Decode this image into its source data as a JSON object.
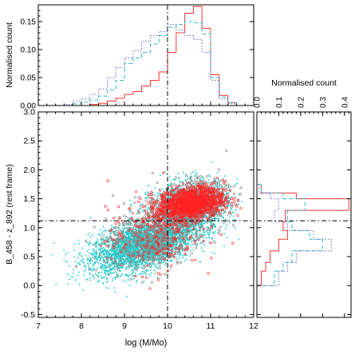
{
  "chart_data": [
    {
      "id": "top-histogram",
      "type": "histogram",
      "ylabel": "Normalised count",
      "xlim": [
        7,
        12
      ],
      "ylim": [
        0,
        0.18
      ],
      "yticks": [
        "0.00",
        "0.05",
        "0.10",
        "0.15"
      ],
      "bin_edges": [
        7.4,
        7.6,
        7.8,
        8.0,
        8.2,
        8.4,
        8.6,
        8.8,
        9.0,
        9.2,
        9.4,
        9.6,
        9.8,
        10.0,
        10.2,
        10.4,
        10.6,
        10.8,
        11.0,
        11.2,
        11.4,
        11.6,
        11.8
      ],
      "vline_x": 10,
      "series": [
        {
          "color": "#ff3333",
          "dash": "solid",
          "values": [
            0,
            0,
            0,
            0,
            0.002,
            0.004,
            0.008,
            0.013,
            0.02,
            0.025,
            0.035,
            0.045,
            0.06,
            0.095,
            0.13,
            0.165,
            0.177,
            0.138,
            0.055,
            0.018,
            0.005,
            0
          ]
        },
        {
          "color": "#33bbbb",
          "dash": "5,3",
          "values": [
            0,
            0,
            0.003,
            0.006,
            0.01,
            0.017,
            0.028,
            0.045,
            0.075,
            0.085,
            0.095,
            0.11,
            0.125,
            0.14,
            0.145,
            0.15,
            0.148,
            0.128,
            0.05,
            0.015,
            0.005,
            0
          ]
        },
        {
          "color": "#6666cc",
          "dash": "1.5,2",
          "values": [
            0,
            0.002,
            0.008,
            0.012,
            0.02,
            0.03,
            0.05,
            0.068,
            0.085,
            0.098,
            0.115,
            0.125,
            0.132,
            0.145,
            0.135,
            0.125,
            0.118,
            0.095,
            0.045,
            0.012,
            0.004,
            0
          ]
        }
      ]
    },
    {
      "id": "scatter",
      "type": "scatter",
      "xlabel": "log (M/Mo)",
      "ylabel": "B_458 - z_892 (rest frame)",
      "xlim": [
        7,
        12
      ],
      "ylim": [
        -0.55,
        3.0
      ],
      "xticks": [
        "7",
        "8",
        "9",
        "10",
        "11",
        "12"
      ],
      "yticks": [
        "-0.5",
        "0.0",
        "0.5",
        "1.0",
        "1.5",
        "2.0",
        "2.5",
        "3.0"
      ],
      "vline_x": 10,
      "hline_y": 1.12,
      "populations": [
        {
          "marker": "triangle",
          "color": "#22cccc",
          "n": 5200,
          "clusters": [
            {
              "weight": 0.62,
              "mx": 9.4,
              "sx": 0.6,
              "my": 0.68,
              "sy": 0.2,
              "slope": 0.18
            },
            {
              "weight": 0.38,
              "mx": 10.5,
              "sx": 0.45,
              "my": 1.35,
              "sy": 0.22,
              "slope": 0.1
            }
          ]
        },
        {
          "marker": "open-circle",
          "color": "#888888",
          "n": 900,
          "clusters": [
            {
              "weight": 0.5,
              "mx": 9.6,
              "sx": 0.55,
              "my": 0.85,
              "sy": 0.28,
              "slope": 0.15
            },
            {
              "weight": 0.5,
              "mx": 10.6,
              "sx": 0.4,
              "my": 1.4,
              "sy": 0.2,
              "slope": 0.1
            }
          ]
        },
        {
          "marker": "open-circle",
          "color": "#ff2222",
          "n": 1500,
          "clusters": [
            {
              "weight": 0.82,
              "mx": 10.55,
              "sx": 0.38,
              "my": 1.43,
              "sy": 0.14,
              "slope": 0.08
            },
            {
              "weight": 0.18,
              "mx": 9.7,
              "sx": 0.55,
              "my": 0.85,
              "sy": 0.3,
              "slope": 0.1
            }
          ]
        }
      ]
    },
    {
      "id": "right-histogram",
      "type": "histogram-horizontal",
      "xlabel": "Normalised count",
      "xlim": [
        0,
        0.43
      ],
      "ylim": [
        -0.55,
        3.0
      ],
      "xticks": [
        "0.0",
        "0.1",
        "0.2",
        "0.3",
        "0.4"
      ],
      "bin_edges": [
        0.0,
        0.25,
        0.4,
        0.6,
        0.8,
        0.95,
        1.1,
        1.3,
        1.5,
        1.6,
        1.75
      ],
      "hline_y": 1.12,
      "series": [
        {
          "color": "#ff3333",
          "dash": "solid",
          "values": [
            0.02,
            0.04,
            0.06,
            0.1,
            0.14,
            0.12,
            0.13,
            0.42,
            0.18,
            0.02
          ]
        },
        {
          "color": "#33bbbb",
          "dash": "5,3",
          "values": [
            0.08,
            0.12,
            0.16,
            0.3,
            0.24,
            0.16,
            0.14,
            0.22,
            0.12,
            0.02
          ]
        },
        {
          "color": "#6666cc",
          "dash": "1.5,2",
          "values": [
            0.1,
            0.14,
            0.18,
            0.34,
            0.26,
            0.14,
            0.08,
            0.1,
            0.06,
            0.01
          ]
        }
      ]
    }
  ]
}
